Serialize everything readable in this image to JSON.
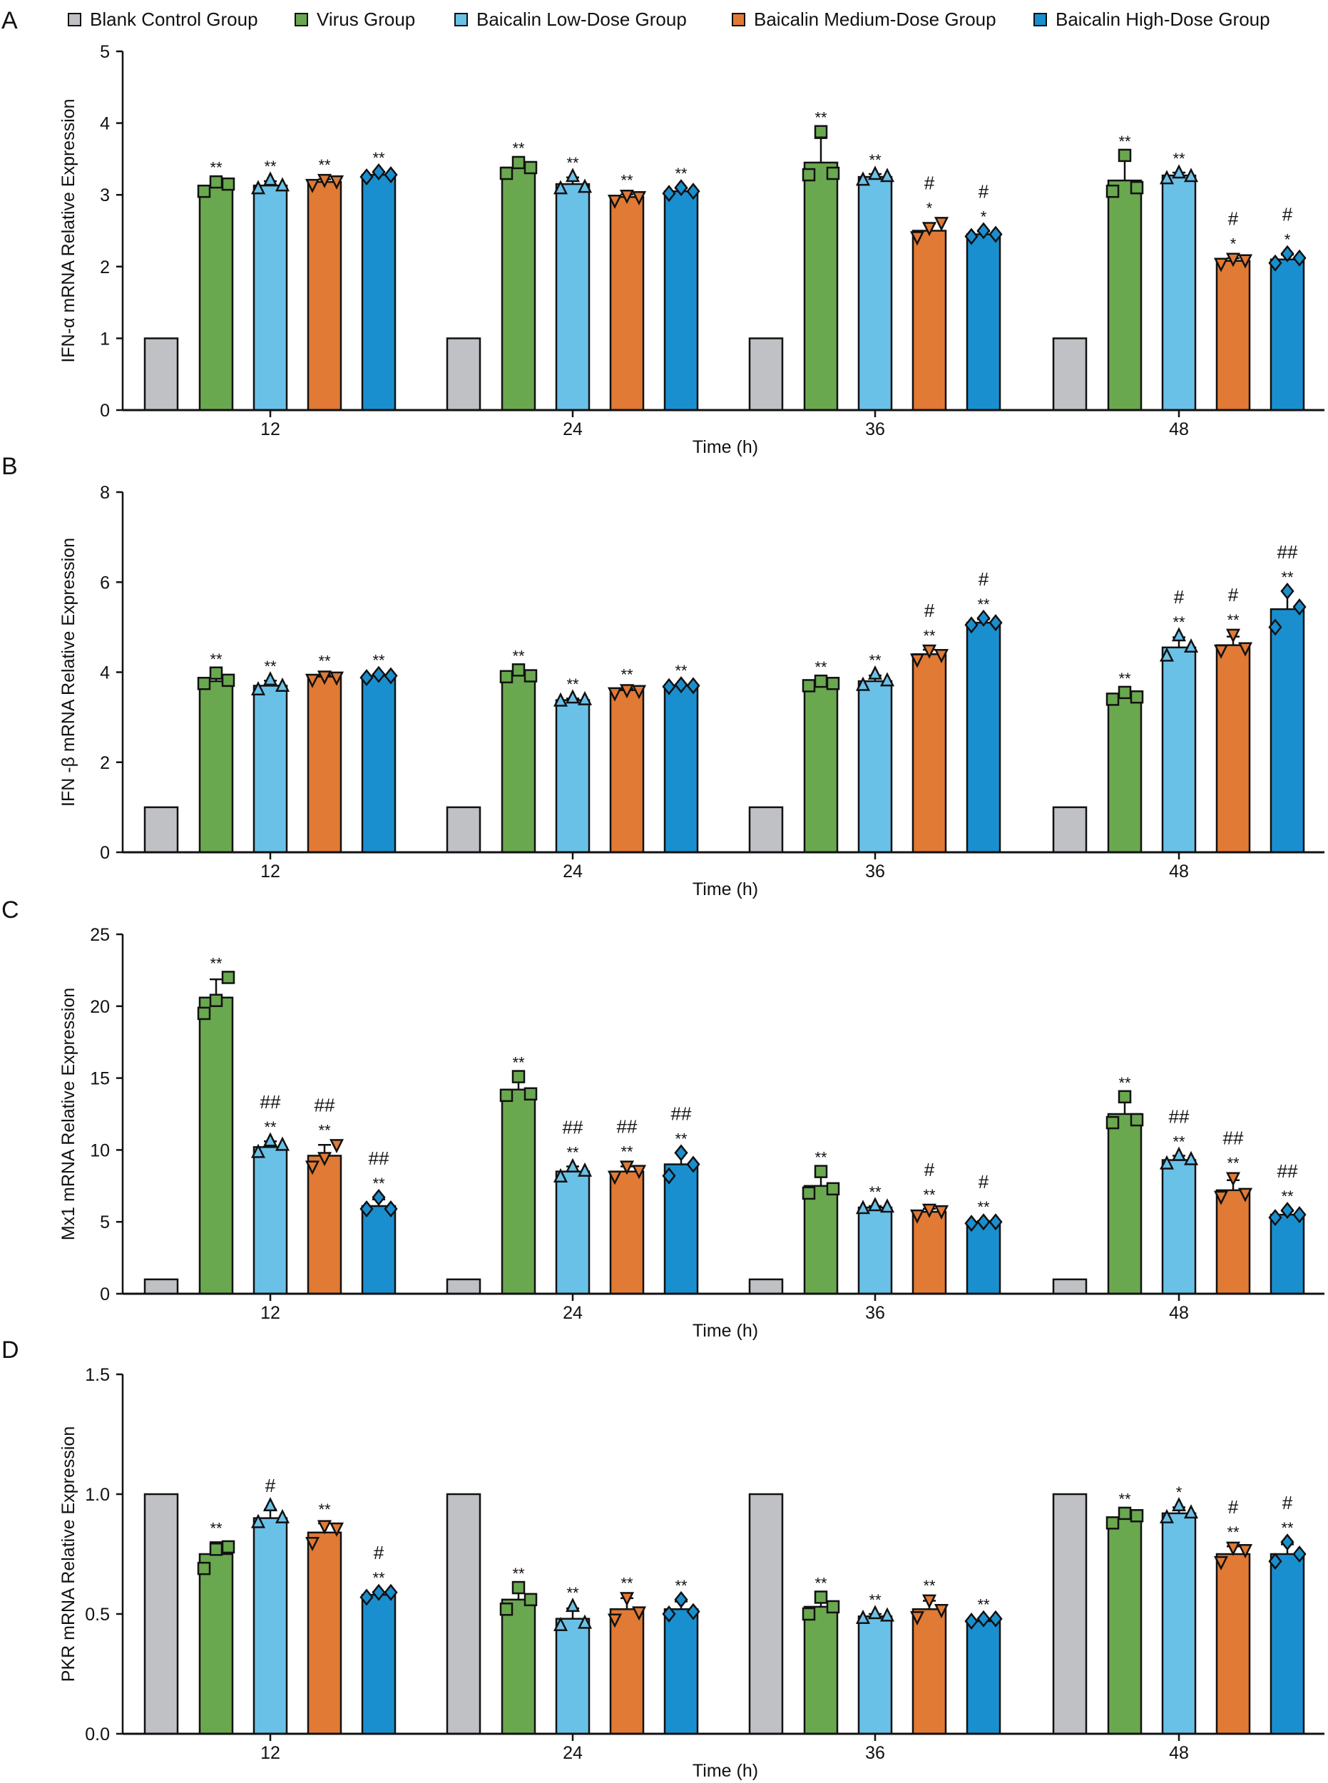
{
  "chart_data": [
    {
      "panel": "A",
      "type": "bar",
      "ylabel": "IFN-α mRNA Relative Expression",
      "xlabel": "Time (h)",
      "ylim": [
        0,
        5
      ],
      "yticks": [
        "0",
        "1",
        "2",
        "3",
        "4",
        "5"
      ],
      "categories": [
        "12",
        "24",
        "36",
        "48"
      ],
      "groups": [
        {
          "bars": [
            {
              "mean": 1,
              "points": []
            },
            {
              "mean": 3.12,
              "points": [
                3.05,
                3.18,
                3.15
              ],
              "ann": [
                "**"
              ]
            },
            {
              "mean": 3.13,
              "points": [
                3.08,
                3.2,
                3.12
              ],
              "ann": [
                "**"
              ]
            },
            {
              "mean": 3.18,
              "points": [
                3.15,
                3.22,
                3.2
              ],
              "ann": [
                "**"
              ]
            },
            {
              "mean": 3.28,
              "points": [
                3.25,
                3.32,
                3.28
              ],
              "ann": [
                "**"
              ]
            }
          ]
        },
        {
          "bars": [
            {
              "mean": 1,
              "points": []
            },
            {
              "mean": 3.38,
              "points": [
                3.3,
                3.45,
                3.38
              ],
              "ann": [
                "**"
              ]
            },
            {
              "mean": 3.15,
              "points": [
                3.08,
                3.25,
                3.1
              ],
              "ann": [
                "**"
              ]
            },
            {
              "mean": 2.97,
              "points": [
                2.93,
                3.0,
                2.98
              ],
              "ann": [
                "**"
              ]
            },
            {
              "mean": 3.05,
              "points": [
                3.02,
                3.1,
                3.05
              ],
              "ann": [
                "**"
              ]
            }
          ]
        },
        {
          "bars": [
            {
              "mean": 1,
              "points": []
            },
            {
              "mean": 3.45,
              "points": [
                3.28,
                3.88,
                3.3
              ],
              "ann": [
                "**"
              ]
            },
            {
              "mean": 3.25,
              "points": [
                3.2,
                3.28,
                3.25
              ],
              "ann": [
                "**"
              ]
            },
            {
              "mean": 2.5,
              "points": [
                2.42,
                2.55,
                2.62
              ],
              "ann": [
                "#",
                "*"
              ]
            },
            {
              "mean": 2.45,
              "points": [
                2.42,
                2.5,
                2.45
              ],
              "ann": [
                "#",
                "*"
              ]
            }
          ]
        },
        {
          "bars": [
            {
              "mean": 1,
              "points": []
            },
            {
              "mean": 3.2,
              "points": [
                3.05,
                3.55,
                3.1
              ],
              "ann": [
                "**"
              ]
            },
            {
              "mean": 3.27,
              "points": [
                3.22,
                3.3,
                3.25
              ],
              "ann": [
                "**"
              ]
            },
            {
              "mean": 2.08,
              "points": [
                2.05,
                2.12,
                2.1
              ],
              "ann": [
                "#",
                "*"
              ]
            },
            {
              "mean": 2.1,
              "points": [
                2.05,
                2.18,
                2.12
              ],
              "ann": [
                "#",
                "*"
              ]
            }
          ]
        }
      ]
    },
    {
      "panel": "B",
      "type": "bar",
      "ylabel": "IFN -β mRNA Relative Expression",
      "xlabel": "Time (h)",
      "ylim": [
        0,
        8
      ],
      "yticks": [
        "0",
        "2",
        "4",
        "6",
        "8"
      ],
      "categories": [
        "12",
        "24",
        "36",
        "48"
      ],
      "groups": [
        {
          "bars": [
            {
              "mean": 1,
              "points": []
            },
            {
              "mean": 3.8,
              "points": [
                3.75,
                3.98,
                3.82
              ],
              "ann": [
                "**"
              ]
            },
            {
              "mean": 3.7,
              "points": [
                3.6,
                3.82,
                3.68
              ],
              "ann": [
                "**"
              ]
            },
            {
              "mean": 3.9,
              "points": [
                3.85,
                3.92,
                3.9
              ],
              "ann": [
                "**"
              ]
            },
            {
              "mean": 3.92,
              "points": [
                3.88,
                3.95,
                3.92
              ],
              "ann": [
                "**"
              ]
            }
          ]
        },
        {
          "bars": [
            {
              "mean": 1,
              "points": []
            },
            {
              "mean": 3.95,
              "points": [
                3.9,
                4.05,
                3.92
              ],
              "ann": [
                "**"
              ]
            },
            {
              "mean": 3.38,
              "points": [
                3.35,
                3.42,
                3.38
              ],
              "ann": [
                "**"
              ]
            },
            {
              "mean": 3.6,
              "points": [
                3.55,
                3.62,
                3.6
              ],
              "ann": [
                "**"
              ]
            },
            {
              "mean": 3.7,
              "points": [
                3.68,
                3.72,
                3.7
              ],
              "ann": [
                "**"
              ]
            }
          ]
        },
        {
          "bars": [
            {
              "mean": 1,
              "points": []
            },
            {
              "mean": 3.75,
              "points": [
                3.7,
                3.8,
                3.75
              ],
              "ann": [
                "**"
              ]
            },
            {
              "mean": 3.8,
              "points": [
                3.7,
                3.95,
                3.8
              ],
              "ann": [
                "**"
              ]
            },
            {
              "mean": 4.4,
              "points": [
                4.3,
                4.5,
                4.4
              ],
              "ann": [
                "#",
                "**"
              ]
            },
            {
              "mean": 5.1,
              "points": [
                5.05,
                5.2,
                5.1
              ],
              "ann": [
                "#",
                "**"
              ]
            }
          ]
        },
        {
          "bars": [
            {
              "mean": 1,
              "points": []
            },
            {
              "mean": 3.45,
              "points": [
                3.4,
                3.55,
                3.45
              ],
              "ann": [
                "**"
              ]
            },
            {
              "mean": 4.55,
              "points": [
                4.35,
                4.8,
                4.55
              ],
              "ann": [
                "#",
                "**"
              ]
            },
            {
              "mean": 4.6,
              "points": [
                4.5,
                4.85,
                4.55
              ],
              "ann": [
                "#",
                "**"
              ]
            },
            {
              "mean": 5.4,
              "points": [
                5.0,
                5.8,
                5.45
              ],
              "ann": [
                "##",
                "**"
              ]
            }
          ]
        }
      ]
    },
    {
      "panel": "C",
      "type": "bar",
      "ylabel": "Mx1 mRNA Relative Expression",
      "xlabel": "Time (h)",
      "ylim": [
        0,
        25
      ],
      "yticks": [
        "0",
        "5",
        "10",
        "15",
        "20",
        "25"
      ],
      "categories": [
        "12",
        "24",
        "36",
        "48"
      ],
      "groups": [
        {
          "bars": [
            {
              "mean": 1,
              "points": []
            },
            {
              "mean": 20.6,
              "points": [
                19.5,
                20.4,
                22.0
              ],
              "ann": [
                "**"
              ]
            },
            {
              "mean": 10.2,
              "points": [
                9.8,
                10.6,
                10.3
              ],
              "ann": [
                "##",
                "**"
              ]
            },
            {
              "mean": 9.6,
              "points": [
                8.9,
                9.5,
                10.4
              ],
              "ann": [
                "##",
                "**"
              ]
            },
            {
              "mean": 6.1,
              "points": [
                5.9,
                6.7,
                5.9
              ],
              "ann": [
                "##",
                "**"
              ]
            }
          ]
        },
        {
          "bars": [
            {
              "mean": 1,
              "points": []
            },
            {
              "mean": 14.2,
              "points": [
                13.8,
                15.1,
                13.9
              ],
              "ann": [
                "**"
              ]
            },
            {
              "mean": 8.5,
              "points": [
                8.1,
                8.8,
                8.5
              ],
              "ann": [
                "##",
                "**"
              ]
            },
            {
              "mean": 8.5,
              "points": [
                8.2,
                8.9,
                8.6
              ],
              "ann": [
                "##",
                "**"
              ]
            },
            {
              "mean": 9.0,
              "points": [
                8.2,
                9.8,
                9.0
              ],
              "ann": [
                "##",
                "**"
              ]
            }
          ]
        },
        {
          "bars": [
            {
              "mean": 1,
              "points": []
            },
            {
              "mean": 7.5,
              "points": [
                7.0,
                8.5,
                7.3
              ],
              "ann": [
                "**"
              ]
            },
            {
              "mean": 6.0,
              "points": [
                5.9,
                6.1,
                6.0
              ],
              "ann": [
                "**"
              ]
            },
            {
              "mean": 5.7,
              "points": [
                5.5,
                5.9,
                5.8
              ],
              "ann": [
                "#",
                "**"
              ]
            },
            {
              "mean": 5.0,
              "points": [
                4.9,
                5.0,
                5.0
              ],
              "ann": [
                "#",
                "**"
              ]
            }
          ]
        },
        {
          "bars": [
            {
              "mean": 1,
              "points": []
            },
            {
              "mean": 12.5,
              "points": [
                11.9,
                13.7,
                12.1
              ],
              "ann": [
                "**"
              ]
            },
            {
              "mean": 9.3,
              "points": [
                9.0,
                9.6,
                9.3
              ],
              "ann": [
                "##",
                "**"
              ]
            },
            {
              "mean": 7.2,
              "points": [
                6.8,
                8.1,
                7.0
              ],
              "ann": [
                "##",
                "**"
              ]
            },
            {
              "mean": 5.5,
              "points": [
                5.3,
                5.8,
                5.5
              ],
              "ann": [
                "##",
                "**"
              ]
            }
          ]
        }
      ]
    },
    {
      "panel": "D",
      "type": "bar",
      "ylabel": "PKR mRNA Relative Expression",
      "xlabel": "Time (h)",
      "ylim": [
        0,
        1.5
      ],
      "yticks": [
        "0.0",
        "0.5",
        "1.0",
        "1.5"
      ],
      "categories": [
        "12",
        "24",
        "36",
        "48"
      ],
      "groups": [
        {
          "bars": [
            {
              "mean": 1,
              "points": []
            },
            {
              "mean": 0.75,
              "points": [
                0.69,
                0.77,
                0.78
              ],
              "ann": [
                "**"
              ]
            },
            {
              "mean": 0.9,
              "points": [
                0.88,
                0.95,
                0.9
              ],
              "ann": [
                "#"
              ]
            },
            {
              "mean": 0.84,
              "points": [
                0.8,
                0.87,
                0.86
              ],
              "ann": [
                "**"
              ]
            },
            {
              "mean": 0.58,
              "points": [
                0.57,
                0.59,
                0.59
              ],
              "ann": [
                "#",
                "**"
              ]
            }
          ]
        },
        {
          "bars": [
            {
              "mean": 1,
              "points": []
            },
            {
              "mean": 0.56,
              "points": [
                0.52,
                0.61,
                0.56
              ],
              "ann": [
                "**"
              ]
            },
            {
              "mean": 0.48,
              "points": [
                0.45,
                0.53,
                0.46
              ],
              "ann": [
                "**"
              ]
            },
            {
              "mean": 0.52,
              "points": [
                0.48,
                0.57,
                0.51
              ],
              "ann": [
                "**"
              ]
            },
            {
              "mean": 0.52,
              "points": [
                0.5,
                0.56,
                0.51
              ],
              "ann": [
                "**"
              ]
            }
          ]
        },
        {
          "bars": [
            {
              "mean": 1,
              "points": []
            },
            {
              "mean": 0.53,
              "points": [
                0.5,
                0.57,
                0.53
              ],
              "ann": [
                "**"
              ]
            },
            {
              "mean": 0.49,
              "points": [
                0.48,
                0.5,
                0.49
              ],
              "ann": [
                "**"
              ]
            },
            {
              "mean": 0.52,
              "points": [
                0.49,
                0.56,
                0.52
              ],
              "ann": [
                "**"
              ]
            },
            {
              "mean": 0.47,
              "points": [
                0.47,
                0.48,
                0.48
              ],
              "ann": [
                "**"
              ]
            }
          ]
        },
        {
          "bars": [
            {
              "mean": 1,
              "points": []
            },
            {
              "mean": 0.9,
              "points": [
                0.88,
                0.92,
                0.91
              ],
              "ann": [
                "**"
              ]
            },
            {
              "mean": 0.92,
              "points": [
                0.9,
                0.95,
                0.92
              ],
              "ann": [
                "*"
              ]
            },
            {
              "mean": 0.75,
              "points": [
                0.72,
                0.78,
                0.77
              ],
              "ann": [
                "#",
                "**"
              ]
            },
            {
              "mean": 0.75,
              "points": [
                0.72,
                0.8,
                0.75
              ],
              "ann": [
                "#",
                "**"
              ]
            }
          ]
        }
      ]
    }
  ],
  "legend": {
    "placement": "top",
    "series": [
      {
        "name": "Blank Control Group",
        "color": "#BFC1C5",
        "marker": "none"
      },
      {
        "name": "Virus Group",
        "color": "#6AA84F",
        "marker": "square"
      },
      {
        "name": "Baicalin Low-Dose Group",
        "color": "#6AC1E8",
        "marker": "triangle-up"
      },
      {
        "name": "Baicalin Medium-Dose Group",
        "color": "#E07A35",
        "marker": "triangle-down"
      },
      {
        "name": "Baicalin High-Dose Group",
        "color": "#1A8FCF",
        "marker": "diamond"
      }
    ]
  }
}
